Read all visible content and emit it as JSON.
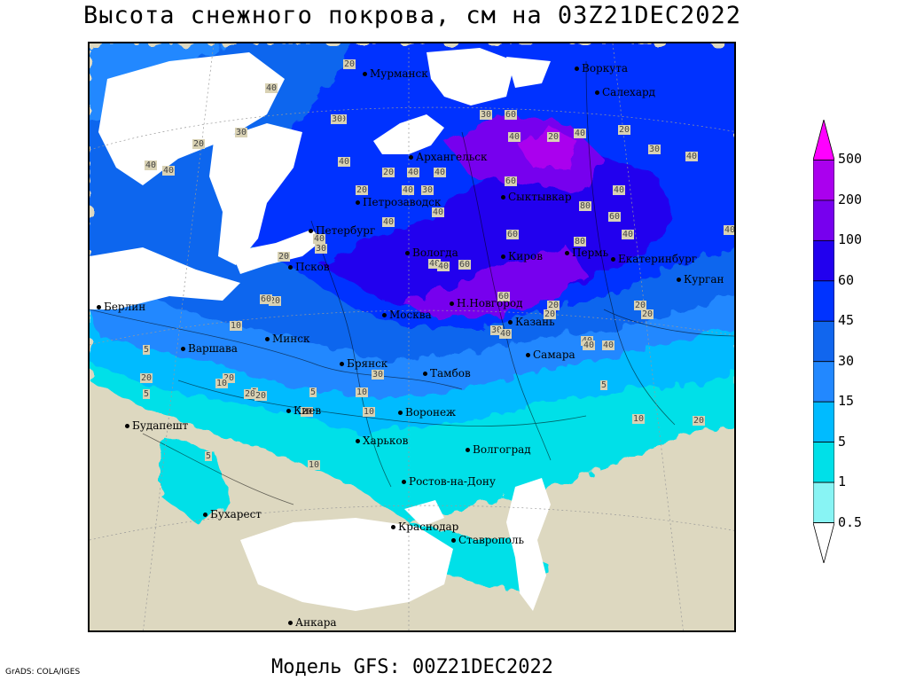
{
  "title": "Высота снежного покрова, см на 03Z21DEC2022",
  "footer": {
    "credit": "GrADS: COLA/IGES",
    "model": "Модель GFS: 00Z21DEC2022"
  },
  "legend": {
    "labels": [
      "500",
      "200",
      "100",
      "60",
      "45",
      "30",
      "15",
      "5",
      "1",
      "0.5"
    ],
    "colors": [
      "#ff00ff",
      "#aa00ee",
      "#7700ee",
      "#2200ee",
      "#0033ff",
      "#1166ee",
      "#2288ff",
      "#00bbff",
      "#00e0e8",
      "#88f4f4",
      "#ffffff"
    ]
  },
  "cities": [
    {
      "name": "Мурманск"
    },
    {
      "name": "Воркута"
    },
    {
      "name": "Салехард"
    },
    {
      "name": "Архангельск"
    },
    {
      "name": "Сыктывкар"
    },
    {
      "name": "Петрозаводск"
    },
    {
      "name": "Петербург"
    },
    {
      "name": "Вологда"
    },
    {
      "name": "Киров"
    },
    {
      "name": "Пермь"
    },
    {
      "name": "Екатеринбург"
    },
    {
      "name": "Курган"
    },
    {
      "name": "Псков"
    },
    {
      "name": "Берлин"
    },
    {
      "name": "Москва"
    },
    {
      "name": "Н.Новгород"
    },
    {
      "name": "Казань"
    },
    {
      "name": "Варшава"
    },
    {
      "name": "Минск"
    },
    {
      "name": "Брянск"
    },
    {
      "name": "Тамбов"
    },
    {
      "name": "Самара"
    },
    {
      "name": "Киев"
    },
    {
      "name": "Воронеж"
    },
    {
      "name": "Будапешт"
    },
    {
      "name": "Харьков"
    },
    {
      "name": "Волгоград"
    },
    {
      "name": "Ростов-на-Дону"
    },
    {
      "name": "Бухарест"
    },
    {
      "name": "Краснодар"
    },
    {
      "name": "Ставрополь"
    },
    {
      "name": "Анкара"
    }
  ],
  "contour_labels": [
    "20",
    "40",
    "30",
    "20",
    "40",
    "40",
    "80",
    "40",
    "30",
    "20",
    "40",
    "40",
    "30",
    "60",
    "20",
    "40",
    "20",
    "30",
    "40",
    "40",
    "20",
    "40",
    "30",
    "40",
    "60",
    "60",
    "80",
    "60",
    "40",
    "80",
    "40",
    "40",
    "40",
    "40",
    "20",
    "20",
    "30",
    "40",
    "40",
    "60",
    "60",
    "20",
    "20",
    "60",
    "20",
    "30",
    "40",
    "40",
    "20",
    "5",
    "10",
    "20",
    "20",
    "40",
    "5",
    "30",
    "40",
    "20",
    "10",
    "20",
    "5",
    "5",
    "10",
    "5",
    "10",
    "20",
    "10",
    "20",
    "5",
    "10"
  ]
}
